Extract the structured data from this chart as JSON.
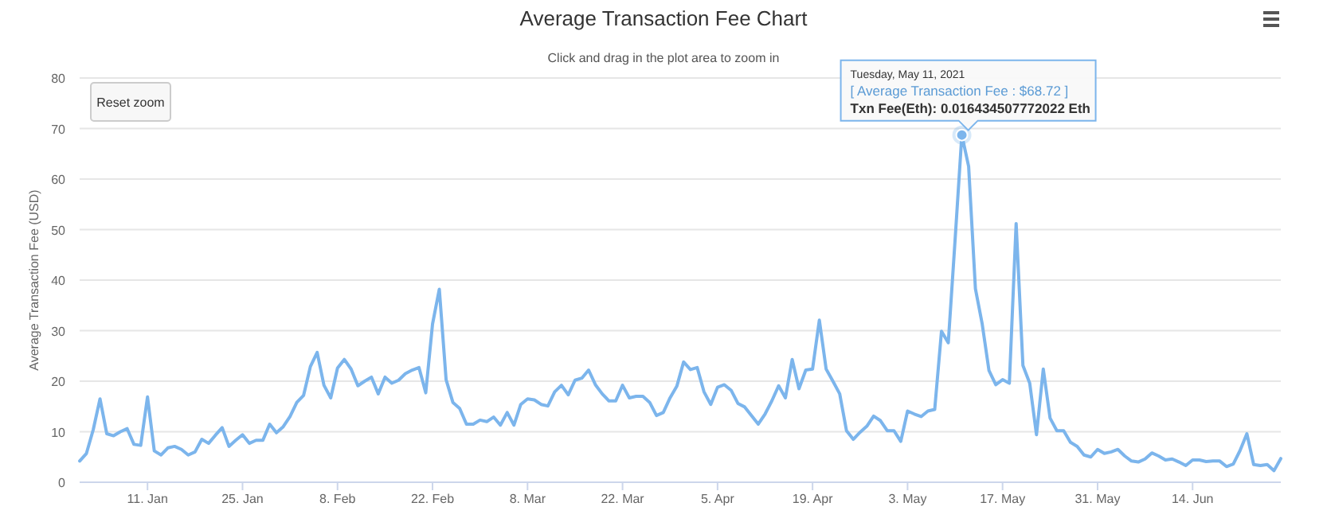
{
  "chart_data": {
    "type": "line",
    "title": "Average Transaction Fee Chart",
    "subtitle": "Click and drag in the plot area to zoom in",
    "ylabel": "Average Transaction Fee (USD)",
    "x": [
      "2021-01-01",
      "2021-01-02",
      "2021-01-03",
      "2021-01-04",
      "2021-01-05",
      "2021-01-06",
      "2021-01-07",
      "2021-01-08",
      "2021-01-09",
      "2021-01-10",
      "2021-01-11",
      "2021-01-12",
      "2021-01-13",
      "2021-01-14",
      "2021-01-15",
      "2021-01-16",
      "2021-01-17",
      "2021-01-18",
      "2021-01-19",
      "2021-01-20",
      "2021-01-21",
      "2021-01-22",
      "2021-01-23",
      "2021-01-24",
      "2021-01-25",
      "2021-01-26",
      "2021-01-27",
      "2021-01-28",
      "2021-01-29",
      "2021-01-30",
      "2021-01-31",
      "2021-02-01",
      "2021-02-02",
      "2021-02-03",
      "2021-02-04",
      "2021-02-05",
      "2021-02-06",
      "2021-02-07",
      "2021-02-08",
      "2021-02-09",
      "2021-02-10",
      "2021-02-11",
      "2021-02-12",
      "2021-02-13",
      "2021-02-14",
      "2021-02-15",
      "2021-02-16",
      "2021-02-17",
      "2021-02-18",
      "2021-02-19",
      "2021-02-20",
      "2021-02-21",
      "2021-02-22",
      "2021-02-23",
      "2021-02-24",
      "2021-02-25",
      "2021-02-26",
      "2021-02-27",
      "2021-02-28",
      "2021-03-01",
      "2021-03-02",
      "2021-03-03",
      "2021-03-04",
      "2021-03-05",
      "2021-03-06",
      "2021-03-07",
      "2021-03-08",
      "2021-03-09",
      "2021-03-10",
      "2021-03-11",
      "2021-03-12",
      "2021-03-13",
      "2021-03-14",
      "2021-03-15",
      "2021-03-16",
      "2021-03-17",
      "2021-03-18",
      "2021-03-19",
      "2021-03-20",
      "2021-03-21",
      "2021-03-22",
      "2021-03-23",
      "2021-03-24",
      "2021-03-25",
      "2021-03-26",
      "2021-03-27",
      "2021-03-28",
      "2021-03-29",
      "2021-03-30",
      "2021-03-31",
      "2021-04-01",
      "2021-04-02",
      "2021-04-03",
      "2021-04-04",
      "2021-04-05",
      "2021-04-06",
      "2021-04-07",
      "2021-04-08",
      "2021-04-09",
      "2021-04-10",
      "2021-04-11",
      "2021-04-12",
      "2021-04-13",
      "2021-04-14",
      "2021-04-15",
      "2021-04-16",
      "2021-04-17",
      "2021-04-18",
      "2021-04-19",
      "2021-04-20",
      "2021-04-21",
      "2021-04-22",
      "2021-04-23",
      "2021-04-24",
      "2021-04-25",
      "2021-04-26",
      "2021-04-27",
      "2021-04-28",
      "2021-04-29",
      "2021-04-30",
      "2021-05-01",
      "2021-05-02",
      "2021-05-03",
      "2021-05-04",
      "2021-05-05",
      "2021-05-06",
      "2021-05-07",
      "2021-05-08",
      "2021-05-09",
      "2021-05-10",
      "2021-05-11",
      "2021-05-12",
      "2021-05-13",
      "2021-05-14",
      "2021-05-15",
      "2021-05-16",
      "2021-05-17",
      "2021-05-18",
      "2021-05-19",
      "2021-05-20",
      "2021-05-21",
      "2021-05-22",
      "2021-05-23",
      "2021-05-24",
      "2021-05-25",
      "2021-05-26",
      "2021-05-27",
      "2021-05-28",
      "2021-05-29",
      "2021-05-30",
      "2021-05-31",
      "2021-06-01",
      "2021-06-02",
      "2021-06-03",
      "2021-06-04",
      "2021-06-05",
      "2021-06-06",
      "2021-06-07",
      "2021-06-08",
      "2021-06-09",
      "2021-06-10",
      "2021-06-11",
      "2021-06-12",
      "2021-06-13",
      "2021-06-14",
      "2021-06-15",
      "2021-06-16",
      "2021-06-17",
      "2021-06-18",
      "2021-06-19",
      "2021-06-20",
      "2021-06-21",
      "2021-06-22",
      "2021-06-23",
      "2021-06-24",
      "2021-06-25",
      "2021-06-26",
      "2021-06-27"
    ],
    "series": [
      {
        "color": "#7cb5ec",
        "values": [
          4.2,
          5.7,
          10.4,
          16.5,
          9.6,
          9.2,
          10,
          10.6,
          7.5,
          7.3,
          16.9,
          6.2,
          5.4,
          6.8,
          7.1,
          6.5,
          5.4,
          6,
          8.5,
          7.7,
          9.3,
          10.8,
          7.1,
          8.3,
          9.4,
          7.7,
          8.3,
          8.3,
          11.5,
          9.8,
          11,
          13,
          15.8,
          17.2,
          22.9,
          25.7,
          19.2,
          16.7,
          22.6,
          24.3,
          22.4,
          19.1,
          20,
          20.8,
          17.5,
          20.8,
          19.6,
          20.2,
          21.5,
          22.2,
          22.7,
          17.7,
          31.3,
          38.2,
          20.3,
          15.8,
          14.6,
          11.5,
          11.5,
          12.3,
          12,
          12.9,
          11.3,
          13.8,
          11.3,
          15.4,
          16.5,
          16.3,
          15.4,
          15.1,
          17.9,
          19.2,
          17.3,
          20.2,
          20.6,
          22.2,
          19.3,
          17.5,
          16.1,
          16.1,
          19.2,
          16.7,
          17,
          17,
          15.8,
          13.2,
          13.8,
          16.7,
          19,
          23.8,
          22.3,
          22.7,
          17.9,
          15.4,
          18.8,
          19.3,
          18.2,
          15.6,
          14.9,
          13.2,
          11.5,
          13.5,
          16.1,
          19.1,
          16.7,
          24.3,
          18.5,
          22.2,
          22.4,
          32.1,
          22.4,
          20,
          17.5,
          10.2,
          8.5,
          9.9,
          11.1,
          13.1,
          12.2,
          10.2,
          10.2,
          8.1,
          14.1,
          13.5,
          13,
          14.1,
          14.4,
          29.9,
          27.6,
          47.9,
          68.72,
          62.5,
          38.3,
          31.3,
          22.1,
          19.3,
          20.3,
          19.6,
          51.2,
          23.1,
          19.6,
          9.4,
          22.4,
          12.7,
          10.2,
          10.2,
          7.9,
          7.1,
          5.4,
          5,
          6.5,
          5.7,
          6,
          6.5,
          5.2,
          4.2,
          4,
          4.6,
          5.8,
          5.2,
          4.4,
          4.6,
          4,
          3.3,
          4.4,
          4.4,
          4.1,
          4.2,
          4.2,
          3.1,
          3.6,
          6.3,
          9.6,
          3.5,
          3.3,
          3.5,
          2.3,
          4.7
        ]
      }
    ],
    "xlim": [
      "2021-01-01",
      "2021-06-27"
    ],
    "xticks": [
      {
        "value": "2021-01-11",
        "label": "11. Jan"
      },
      {
        "value": "2021-01-25",
        "label": "25. Jan"
      },
      {
        "value": "2021-02-08",
        "label": "8. Feb"
      },
      {
        "value": "2021-02-22",
        "label": "22. Feb"
      },
      {
        "value": "2021-03-08",
        "label": "8. Mar"
      },
      {
        "value": "2021-03-22",
        "label": "22. Mar"
      },
      {
        "value": "2021-04-05",
        "label": "5. Apr"
      },
      {
        "value": "2021-04-19",
        "label": "19. Apr"
      },
      {
        "value": "2021-05-03",
        "label": "3. May"
      },
      {
        "value": "2021-05-17",
        "label": "17. May"
      },
      {
        "value": "2021-05-31",
        "label": "31. May"
      },
      {
        "value": "2021-06-14",
        "label": "14. Jun"
      }
    ],
    "ylim": [
      0,
      80
    ],
    "yticks": [
      0,
      10,
      20,
      30,
      40,
      50,
      60,
      70,
      80
    ],
    "grid": "y",
    "marker": "none",
    "line_style": "solid",
    "annotations": [
      "Reset zoom",
      "Tuesday, May 11, 2021",
      "[ Average Transaction Fee : $68.72 ]",
      "Txn Fee(Eth): 0.016434507772022 Eth"
    ]
  }
}
